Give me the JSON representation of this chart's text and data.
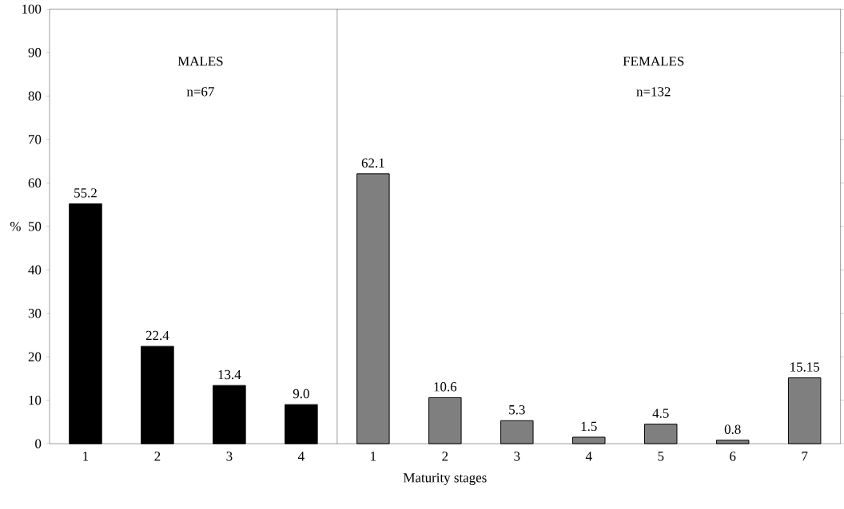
{
  "chart_data": {
    "type": "bar",
    "xlabel": "Maturity stages",
    "ylabel": "%",
    "categories": [
      "1",
      "2",
      "3",
      "4",
      "1",
      "2",
      "3",
      "4",
      "5",
      "6",
      "7"
    ],
    "series": [
      {
        "color": "#000000",
        "values": [
          55.2,
          22.4,
          13.4,
          9.0,
          null,
          null,
          null,
          null,
          null,
          null,
          null
        ],
        "value_labels": [
          "55.2",
          "22.4",
          "13.4",
          "9.0",
          null,
          null,
          null,
          null,
          null,
          null,
          null
        ]
      },
      {
        "color": "#7f7f7f",
        "values": [
          null,
          null,
          null,
          null,
          62.1,
          10.6,
          5.3,
          1.5,
          4.5,
          0.8,
          15.15
        ],
        "value_labels": [
          null,
          null,
          null,
          null,
          "62.1",
          "10.6",
          "5.3",
          "1.5",
          "4.5",
          "0.8",
          "15.15"
        ]
      }
    ],
    "annotations": [
      "MALES",
      "n=67",
      "FEMALES",
      "n=132"
    ],
    "ylim": [
      0,
      100
    ],
    "yticks": [
      0,
      10,
      20,
      30,
      40,
      50,
      60,
      70,
      80,
      90,
      100
    ],
    "grid": false
  }
}
